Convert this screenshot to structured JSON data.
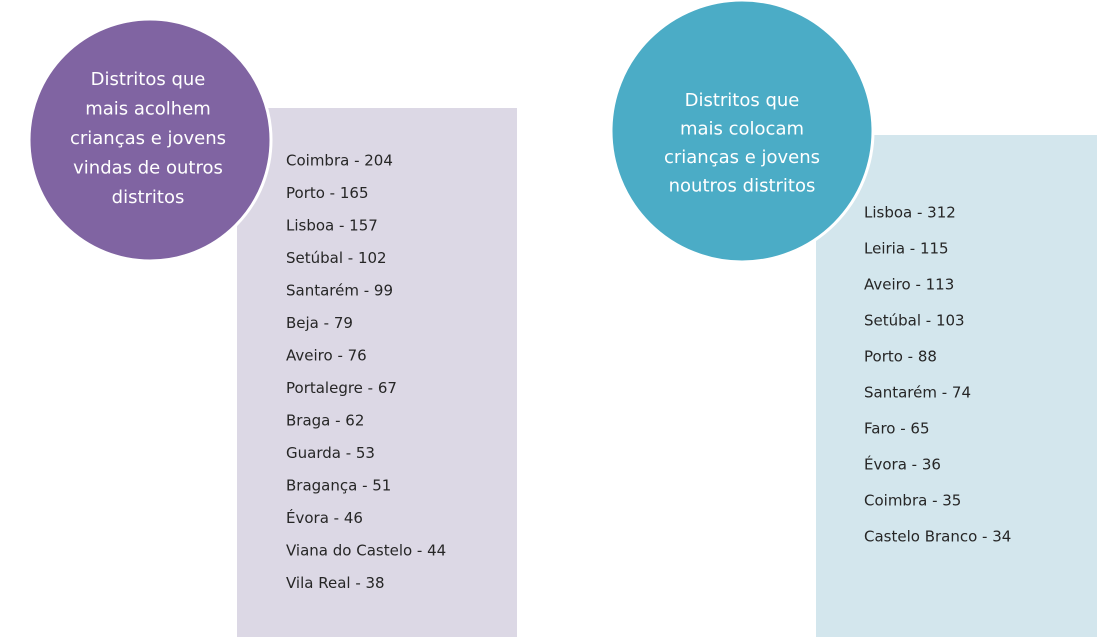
{
  "panels": [
    {
      "title_lines": [
        "Distritos que",
        "mais acolhem",
        "crianças e jovens",
        "vindas de outros",
        "distritos"
      ],
      "items": [
        "Coimbra - 204",
        "Porto - 165",
        "Lisboa - 157",
        "Setúbal - 102",
        "Santarém - 99",
        "Beja - 79",
        "Aveiro - 76",
        "Portalegre - 67",
        "Braga - 62",
        "Guarda - 53",
        "Bragança - 51",
        "Évora - 46",
        "Viana do Castelo - 44",
        "Vila Real - 38"
      ]
    },
    {
      "title_lines": [
        "Distritos que",
        "mais colocam",
        "crianças e jovens",
        "noutros distritos"
      ],
      "items": [
        "Lisboa - 312",
        "Leiria - 115",
        "Aveiro - 113",
        "Setúbal - 103",
        "Porto - 88",
        "Santarém - 74",
        "Faro - 65",
        "Évora - 36",
        "Coimbra - 35",
        "Castelo Branco - 34"
      ]
    }
  ]
}
